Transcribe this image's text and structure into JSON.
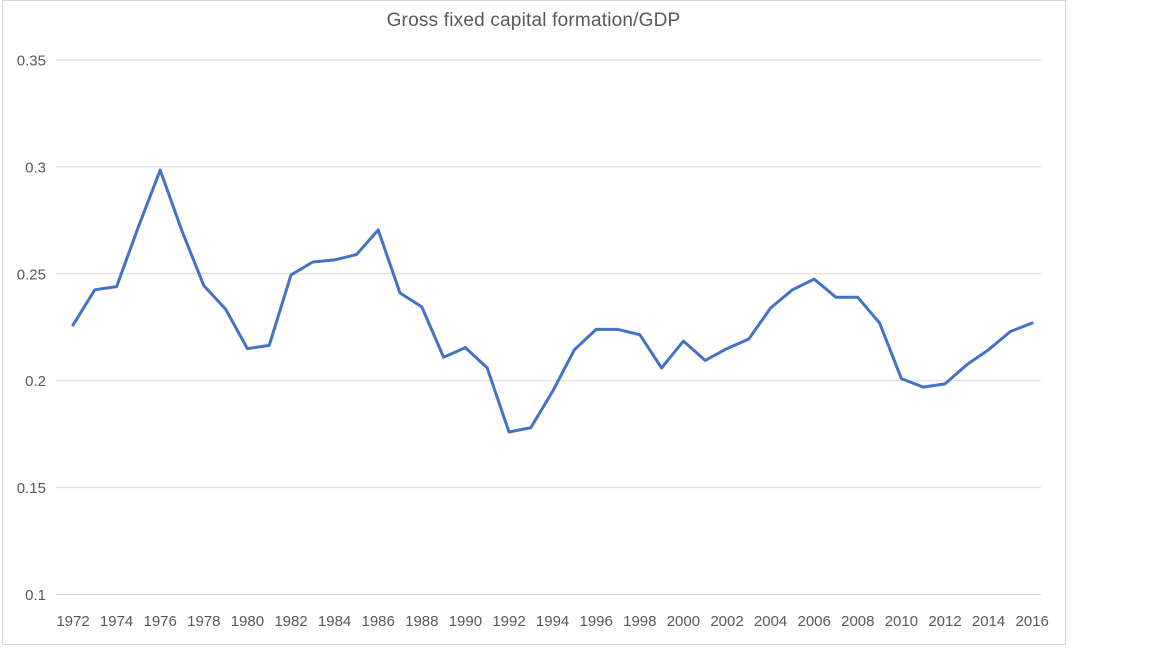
{
  "chart_data": {
    "type": "line",
    "title": "Gross fixed capital formation/GDP",
    "xlabel": "",
    "ylabel": "",
    "x": [
      1972,
      1973,
      1974,
      1975,
      1976,
      1977,
      1978,
      1979,
      1980,
      1981,
      1982,
      1983,
      1984,
      1985,
      1986,
      1987,
      1988,
      1989,
      1990,
      1991,
      1992,
      1993,
      1994,
      1995,
      1996,
      1997,
      1998,
      1999,
      2000,
      2001,
      2002,
      2003,
      2004,
      2005,
      2006,
      2007,
      2008,
      2009,
      2010,
      2011,
      2012,
      2013,
      2014,
      2015,
      2016
    ],
    "values": [
      0.226,
      0.2425,
      0.244,
      0.272,
      0.2985,
      0.27,
      0.2445,
      0.2335,
      0.215,
      0.2165,
      0.2495,
      0.2555,
      0.2565,
      0.259,
      0.2705,
      0.241,
      0.2345,
      0.211,
      0.2155,
      0.206,
      0.176,
      0.178,
      0.195,
      0.2145,
      0.224,
      0.224,
      0.2215,
      0.206,
      0.2185,
      0.2095,
      0.215,
      0.2195,
      0.234,
      0.2425,
      0.2475,
      0.239,
      0.239,
      0.227,
      0.201,
      0.197,
      0.1985,
      0.2075,
      0.2145,
      0.223,
      0.227
    ],
    "ylim": [
      0.1,
      0.35
    ],
    "yticks": [
      0.1,
      0.15,
      0.2,
      0.25,
      0.3,
      0.35
    ],
    "ytick_labels": [
      "0.1",
      "0.15",
      "0.2",
      "0.25",
      "0.3",
      "0.35"
    ],
    "xtick_labels": [
      "1972",
      "1974",
      "1976",
      "1978",
      "1980",
      "1982",
      "1984",
      "1986",
      "1988",
      "1990",
      "1992",
      "1994",
      "1996",
      "1998",
      "2000",
      "2002",
      "2004",
      "2006",
      "2008",
      "2010",
      "2012",
      "2014",
      "2016"
    ],
    "grid": "horizontal",
    "legend": "none",
    "line_color": "#4472C4",
    "grid_color": "#D9D9D9",
    "border_color": "#D9D9D9",
    "text_color": "#595959",
    "background_color": "#FFFFFF"
  }
}
